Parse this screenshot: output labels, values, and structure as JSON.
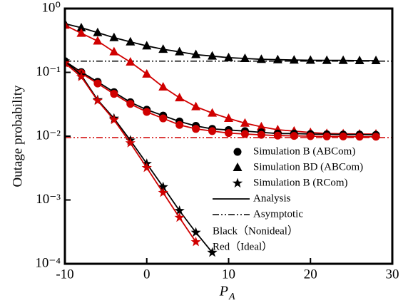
{
  "chart_data": {
    "type": "line",
    "ylabel": "Outage probability",
    "xlabel": {
      "main": "P",
      "sub": "A"
    },
    "log_y": true,
    "xlim": [
      -10,
      30
    ],
    "ylim": [
      0.0001,
      1
    ],
    "xticks": [
      -10,
      0,
      10,
      20,
      30
    ],
    "yticks": [
      {
        "value": 1,
        "label": "10⁰"
      },
      {
        "value": 0.1,
        "label": "10⁻¹"
      },
      {
        "value": 0.01,
        "label": "10⁻²"
      },
      {
        "value": 0.001,
        "label": "10⁻³"
      },
      {
        "value": 0.0001,
        "label": "10⁻⁴"
      }
    ],
    "x": [
      -10,
      -8,
      -6,
      -4,
      -2,
      0,
      2,
      4,
      6,
      8,
      10,
      12,
      14,
      16,
      18,
      20,
      22,
      24,
      26,
      28
    ],
    "series": [
      {
        "marker": "triangle",
        "color": "#000000",
        "values": [
          0.58,
          0.5,
          0.42,
          0.35,
          0.3,
          0.26,
          0.23,
          0.21,
          0.19,
          0.18,
          0.17,
          0.165,
          0.16,
          0.158,
          0.156,
          0.155,
          0.154,
          0.154,
          0.153,
          0.153
        ]
      },
      {
        "marker": "triangle",
        "color": "#d00000",
        "values": [
          0.55,
          0.41,
          0.31,
          0.21,
          0.145,
          0.094,
          0.059,
          0.04,
          0.029,
          0.023,
          0.019,
          0.016,
          0.014,
          0.0126,
          0.012,
          0.0114,
          0.011,
          0.0109,
          0.0108,
          0.0108
        ]
      },
      {
        "marker": "circle",
        "color": "#000000",
        "values": [
          0.15,
          0.101,
          0.071,
          0.049,
          0.034,
          0.026,
          0.021,
          0.017,
          0.0145,
          0.013,
          0.0125,
          0.012,
          0.0115,
          0.011,
          0.011,
          0.0108,
          0.0107,
          0.0106,
          0.0106,
          0.0105
        ]
      },
      {
        "marker": "circle",
        "color": "#d00000",
        "values": [
          0.14,
          0.097,
          0.067,
          0.046,
          0.032,
          0.024,
          0.019,
          0.015,
          0.013,
          0.012,
          0.0112,
          0.0108,
          0.0105,
          0.0102,
          0.0101,
          0.01,
          0.0099,
          0.0099,
          0.0098,
          0.0098
        ]
      },
      {
        "marker": "star",
        "color": "#000000",
        "values": [
          0.15,
          0.09,
          0.037,
          0.019,
          0.0086,
          0.0037,
          0.0016,
          0.00068,
          0.00031,
          0.00015,
          null,
          null,
          null,
          null,
          null,
          null,
          null,
          null,
          null,
          null
        ]
      },
      {
        "marker": "star",
        "color": "#d00000",
        "values": [
          0.14,
          0.085,
          0.036,
          0.018,
          0.0078,
          0.0032,
          0.0013,
          0.00053,
          0.00022,
          null,
          null,
          null,
          null,
          null,
          null,
          null,
          null,
          null,
          null,
          null
        ]
      }
    ],
    "asymptotes": [
      {
        "color": "#000000",
        "value": 0.15
      },
      {
        "color": "#d00000",
        "value": 0.0095
      }
    ],
    "legend": [
      {
        "label": "Simulation B (ABCom)",
        "marker": "circle"
      },
      {
        "label": "Simulation BD (ABCom)",
        "marker": "triangle"
      },
      {
        "label": "Simulation B (RCom)",
        "marker": "star"
      },
      {
        "label": "Analysis",
        "marker": "solid"
      },
      {
        "label": "Asymptotic",
        "marker": "dashdot"
      },
      {
        "label": "Black（Nonideal）",
        "marker": "none"
      },
      {
        "label": "Red（Ideal）",
        "marker": "none"
      }
    ]
  }
}
